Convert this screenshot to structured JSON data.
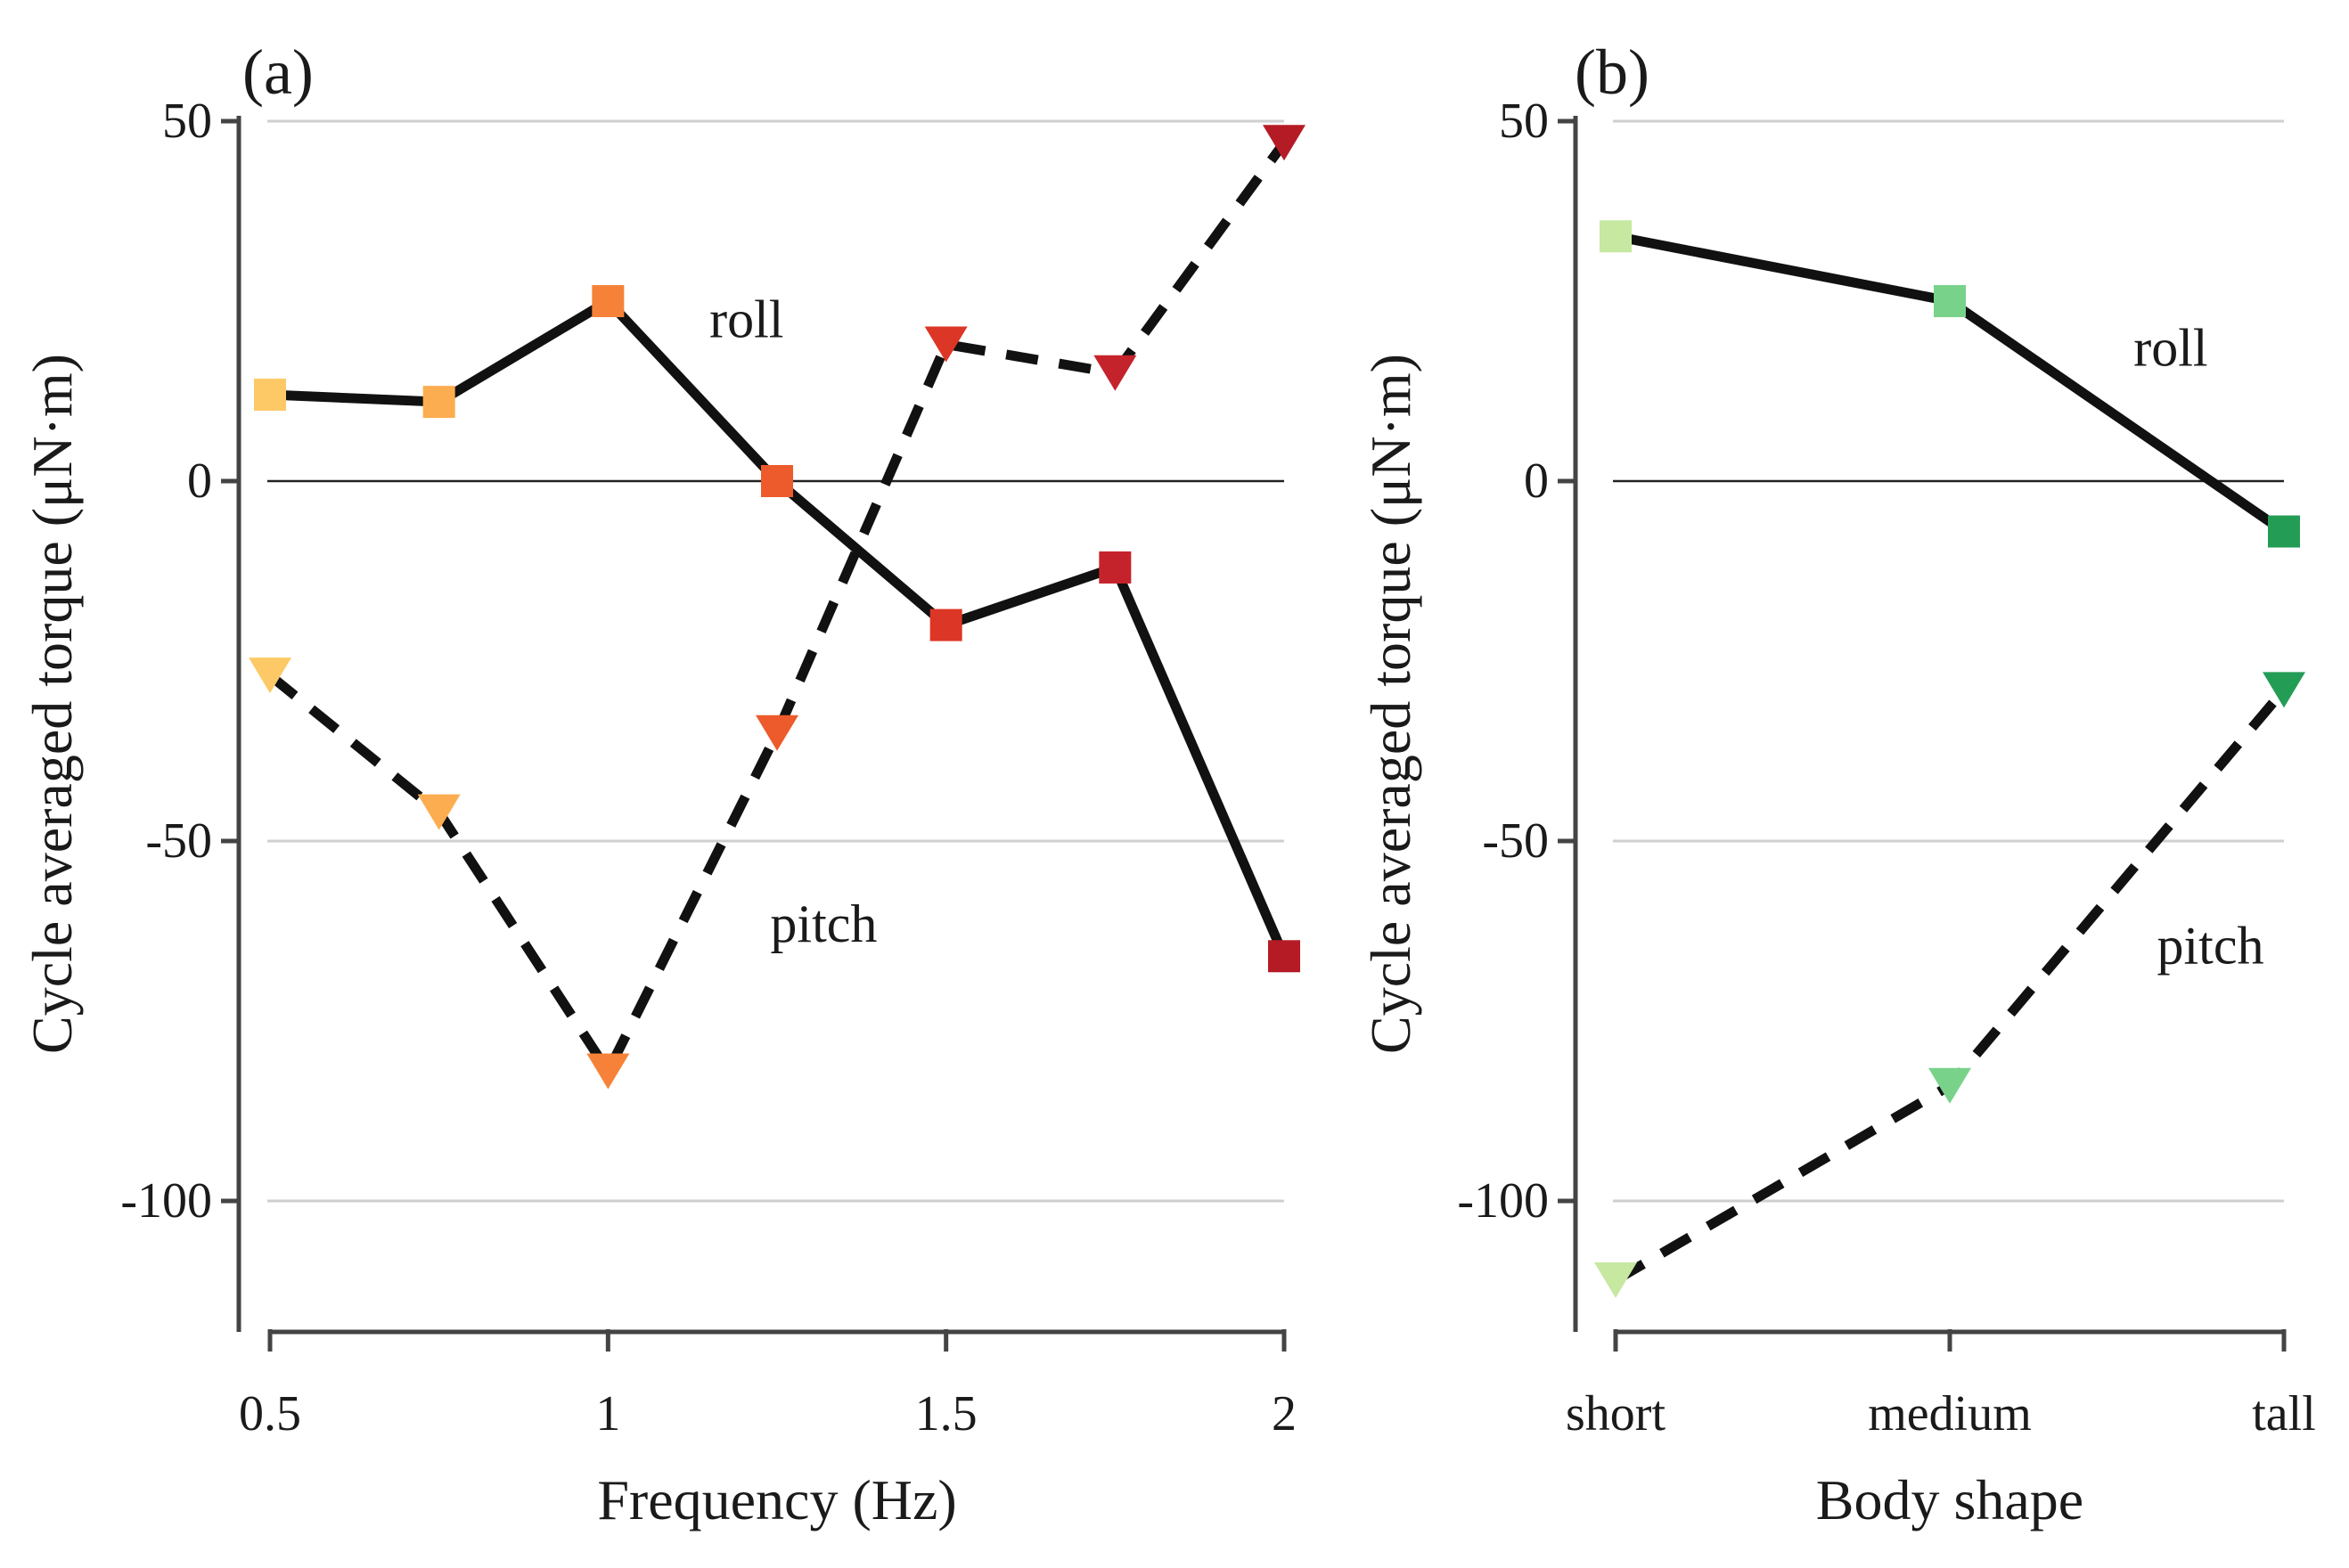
{
  "chart_data": [
    {
      "panel_label": "(a)",
      "type": "line",
      "xlabel": "Frequency (Hz)",
      "ylabel": "Cycle averaged torque (μN·m)",
      "x": [
        0.5,
        0.75,
        1.0,
        1.25,
        1.5,
        1.75,
        2.0
      ],
      "xlim": [
        0.5,
        2.0
      ],
      "ylim": [
        -117,
        50
      ],
      "xticks": [
        0.5,
        1.0,
        1.5,
        2.0
      ],
      "xtick_labels": [
        "0.5",
        "1",
        "1.5",
        "2"
      ],
      "yticks": [
        50,
        0,
        -50,
        -100
      ],
      "ytick_labels": [
        "50",
        "0",
        "-50",
        "-100"
      ],
      "grid": "horizontal",
      "point_colors": [
        "#fdc966",
        "#fcad50",
        "#f6823a",
        "#ed5a2b",
        "#dc3626",
        "#c5232b",
        "#b51b25"
      ],
      "series": [
        {
          "name": "roll",
          "style": "solid",
          "marker": "square",
          "values": [
            12,
            11,
            25,
            0,
            -20,
            -12,
            -66
          ]
        },
        {
          "name": "pitch",
          "style": "dashed",
          "marker": "triangle-down",
          "values": [
            -27,
            -46,
            -82,
            -35,
            19,
            15,
            47
          ]
        }
      ],
      "annotations": [
        {
          "text": "roll",
          "x": 1.15,
          "y": 20
        },
        {
          "text": "pitch",
          "x": 1.24,
          "y": -64
        }
      ]
    },
    {
      "panel_label": "(b)",
      "type": "line",
      "xlabel": "Body shape",
      "ylabel": "Cycle averaged torque (μN·m)",
      "categories": [
        "short",
        "medium",
        "tall"
      ],
      "ylim": [
        -117,
        50
      ],
      "yticks": [
        50,
        0,
        -50,
        -100
      ],
      "ytick_labels": [
        "50",
        "0",
        "-50",
        "-100"
      ],
      "grid": "horizontal",
      "point_colors": [
        "#c6e8a0",
        "#78d28a",
        "#239c56"
      ],
      "series": [
        {
          "name": "roll",
          "style": "solid",
          "marker": "square",
          "values": [
            34,
            25,
            -7
          ]
        },
        {
          "name": "pitch",
          "style": "dashed",
          "marker": "triangle-down",
          "values": [
            -111,
            -84,
            -29
          ]
        }
      ],
      "annotations": [
        {
          "text": "roll",
          "x": 1.55,
          "y": 16
        },
        {
          "text": "pitch",
          "x": 1.62,
          "y": -67
        }
      ]
    }
  ]
}
